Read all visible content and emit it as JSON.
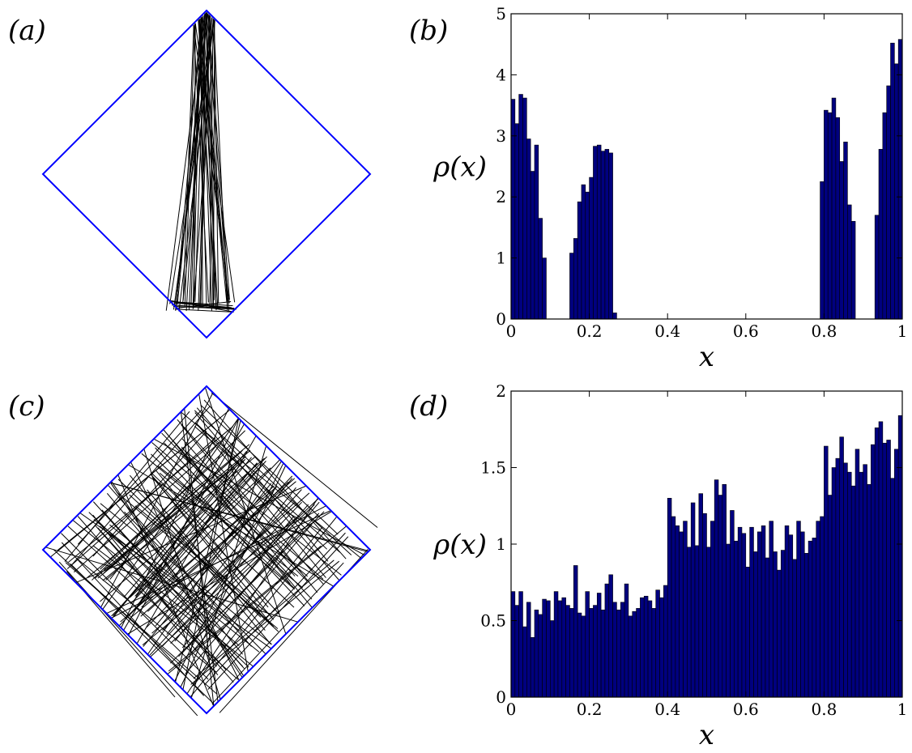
{
  "panels": {
    "a": "(a)",
    "b": "(b)",
    "c": "(c)",
    "d": "(d)"
  },
  "colors": {
    "billiard_border": "#0000ff",
    "trajectory": "#000000",
    "bar_fill": "#00007f",
    "bar_edge": "#000000"
  },
  "chart_data": [
    {
      "panel": "a",
      "type": "diagram",
      "shape": "square billiard rotated 45 degrees",
      "description_visible": "trajectory confined, focusing between top corner and lower-left edge"
    },
    {
      "panel": "b",
      "type": "bar",
      "xlabel": "x",
      "ylabel": "ρ(x)",
      "xlim": [
        0,
        1
      ],
      "ylim": [
        0,
        5
      ],
      "xticks": [
        "0",
        "0.2",
        "0.4",
        "0.6",
        "0.8",
        "1"
      ],
      "yticks": [
        "0",
        "1",
        "2",
        "3",
        "4",
        "5"
      ],
      "bin_width": 0.01,
      "x": [
        0.005,
        0.015,
        0.025,
        0.035,
        0.045,
        0.055,
        0.065,
        0.075,
        0.085,
        0.155,
        0.165,
        0.175,
        0.185,
        0.195,
        0.205,
        0.215,
        0.225,
        0.235,
        0.245,
        0.255,
        0.265,
        0.795,
        0.805,
        0.815,
        0.825,
        0.835,
        0.845,
        0.855,
        0.865,
        0.875,
        0.935,
        0.945,
        0.955,
        0.965,
        0.975,
        0.985,
        0.995
      ],
      "values": [
        3.6,
        3.2,
        3.68,
        3.62,
        2.95,
        2.42,
        2.85,
        1.65,
        1.0,
        1.08,
        1.32,
        1.92,
        2.2,
        2.08,
        2.32,
        2.83,
        2.85,
        2.75,
        2.78,
        2.72,
        0.1,
        2.25,
        3.42,
        3.38,
        3.62,
        3.3,
        2.58,
        2.9,
        1.87,
        1.6,
        1.7,
        2.78,
        3.38,
        3.82,
        4.52,
        4.18,
        4.58
      ]
    },
    {
      "panel": "c",
      "type": "diagram",
      "shape": "square billiard rotated 45 degrees",
      "description_visible": "ergodic trajectory filling the whole billiard"
    },
    {
      "panel": "d",
      "type": "bar",
      "xlabel": "x",
      "ylabel": "ρ(x)",
      "xlim": [
        0,
        1
      ],
      "ylim": [
        0,
        2
      ],
      "xticks": [
        "0",
        "0.2",
        "0.4",
        "0.6",
        "0.8",
        "1"
      ],
      "yticks": [
        "0",
        "0.5",
        "1",
        "1.5",
        "2"
      ],
      "bin_width": 0.01,
      "values": [
        0.69,
        0.6,
        0.69,
        0.46,
        0.62,
        0.39,
        0.57,
        0.54,
        0.64,
        0.63,
        0.5,
        0.69,
        0.63,
        0.65,
        0.6,
        0.58,
        0.86,
        0.55,
        0.53,
        0.69,
        0.58,
        0.6,
        0.68,
        0.57,
        0.74,
        0.8,
        0.62,
        0.57,
        0.62,
        0.74,
        0.53,
        0.56,
        0.58,
        0.65,
        0.66,
        0.63,
        0.58,
        0.7,
        0.65,
        0.73,
        1.3,
        1.18,
        1.12,
        1.08,
        1.15,
        0.98,
        1.27,
        0.99,
        1.33,
        1.2,
        0.98,
        1.15,
        1.42,
        1.32,
        1.39,
        1.0,
        1.22,
        1.02,
        1.11,
        1.07,
        0.85,
        1.11,
        0.95,
        1.08,
        1.12,
        0.91,
        1.15,
        0.95,
        0.83,
        0.96,
        1.12,
        1.06,
        0.9,
        1.15,
        1.08,
        0.94,
        1.02,
        1.04,
        1.15,
        1.18,
        1.64,
        1.32,
        1.5,
        1.56,
        1.7,
        1.53,
        1.47,
        1.38,
        1.62,
        1.47,
        1.52,
        1.39,
        1.65,
        1.76,
        1.8,
        1.66,
        1.68,
        1.43,
        1.62,
        1.84
      ]
    }
  ]
}
